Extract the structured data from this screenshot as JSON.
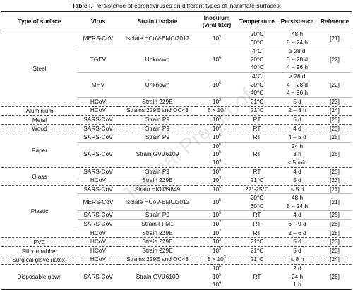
{
  "header": {
    "label": "Table I.",
    "title": "Persistence of coronaviruses on different types of inanimate surfaces."
  },
  "table": {
    "headers": [
      [
        "Type of surface"
      ],
      [
        "Virus"
      ],
      [
        "Strain / isolate"
      ],
      [
        "Inoculum",
        "(viral titer)"
      ],
      [
        "Temperature"
      ],
      [
        "Persistence"
      ],
      [
        "Reference"
      ]
    ],
    "groups": [
      {
        "surface": "Steel",
        "rows": [
          {
            "virus": "MERS-CoV",
            "strain": "Isolate HCoV-EMC/2012",
            "inoculum": [
              {
                "base": "10",
                "exp": "5"
              }
            ],
            "temperature": [
              "20°C",
              "30°C"
            ],
            "persistence": [
              "48 h",
              "8 – 24 h"
            ],
            "reference": "[21]"
          },
          {
            "virus": "TGEV",
            "strain": "Unknown",
            "inoculum": [
              {
                "base": "10",
                "exp": "6"
              }
            ],
            "temperature": [
              "4°C",
              "20°C",
              "40°C"
            ],
            "persistence": [
              "≥ 28 d",
              "3 – 28 d",
              "4 – 96 h"
            ],
            "reference": "[22]"
          },
          {
            "virus": "MHV",
            "strain": "Unknown",
            "inoculum": [
              {
                "base": "10",
                "exp": "6"
              }
            ],
            "temperature": [
              "4°C",
              "20°C",
              "40°C"
            ],
            "persistence": [
              "≥ 28 d",
              "4 – 28 d",
              "4 – 96 h"
            ],
            "reference": "[22]"
          },
          {
            "virus": "HCoV",
            "strain": "Strain 229E",
            "inoculum": [
              {
                "base": "10",
                "exp": "3"
              }
            ],
            "temperature": [
              "21°C"
            ],
            "persistence": [
              "5 d"
            ],
            "reference": "[23]"
          }
        ]
      },
      {
        "surface": "Aluminium",
        "rows": [
          {
            "virus": "HCoV",
            "strain": "Strains 229E and OC43",
            "inoculum": [
              {
                "base": "5 x 10",
                "exp": "3"
              }
            ],
            "temperature": [
              "21°C"
            ],
            "persistence": [
              "2 – 8 h"
            ],
            "reference": "[24]"
          }
        ]
      },
      {
        "surface": "Metal",
        "rows": [
          {
            "virus": "SARS-CoV",
            "strain": "Strain P9",
            "inoculum": [
              {
                "base": "10",
                "exp": "5"
              }
            ],
            "temperature": [
              "RT"
            ],
            "persistence": [
              "5 d"
            ],
            "reference": "[25]"
          }
        ]
      },
      {
        "surface": "Wood",
        "rows": [
          {
            "virus": "SARS-CoV",
            "strain": "Strain P9",
            "inoculum": [
              {
                "base": "10",
                "exp": "5"
              }
            ],
            "temperature": [
              "RT"
            ],
            "persistence": [
              "4 d"
            ],
            "reference": "[25]"
          }
        ]
      },
      {
        "surface": "Paper",
        "rows": [
          {
            "virus": "SARS-CoV",
            "strain": "Strain P9",
            "inoculum": [
              {
                "base": "10",
                "exp": "5"
              }
            ],
            "temperature": [
              "RT"
            ],
            "persistence": [
              "4 – 5 d"
            ],
            "reference": "[25]"
          },
          {
            "virus": "SARS-CoV",
            "strain": "Strain GVU6109",
            "inoculum": [
              {
                "base": "10",
                "exp": "6"
              },
              {
                "base": "10",
                "exp": "5"
              },
              {
                "base": "10",
                "exp": "4"
              }
            ],
            "temperature": [
              "RT"
            ],
            "persistence": [
              "24 h",
              "3 h",
              "< 5 min"
            ],
            "reference": "[26]"
          }
        ]
      },
      {
        "surface": "Glass",
        "rows": [
          {
            "virus": "SARS-CoV",
            "strain": "Strain P9",
            "inoculum": [
              {
                "base": "10",
                "exp": "5"
              }
            ],
            "temperature": [
              "RT"
            ],
            "persistence": [
              "4 d"
            ],
            "reference": "[25]"
          },
          {
            "virus": "HCoV",
            "strain": "Strain 229E",
            "inoculum": [
              {
                "base": "10",
                "exp": "3"
              }
            ],
            "temperature": [
              "21°C"
            ],
            "persistence": [
              "5 d"
            ],
            "reference": "[23]"
          }
        ]
      },
      {
        "surface": "Plastic",
        "rows": [
          {
            "virus": "SARS-CoV",
            "strain": "Strain HKU39849",
            "inoculum": [
              {
                "base": "10",
                "exp": "5"
              }
            ],
            "temperature": [
              "22°-25°C"
            ],
            "persistence": [
              "≤ 5 d"
            ],
            "reference": "[27]"
          },
          {
            "virus": "MERS-CoV",
            "strain": "Isolate HCoV-EMC/2012",
            "inoculum": [
              {
                "base": "10",
                "exp": "5"
              }
            ],
            "temperature": [
              "20°C",
              "30°C"
            ],
            "persistence": [
              "48 h",
              "8 – 24 h"
            ],
            "reference": "[21]"
          },
          {
            "virus": "SARS-CoV",
            "strain": "Strain P9",
            "inoculum": [
              {
                "base": "10",
                "exp": "5"
              }
            ],
            "temperature": [
              "RT"
            ],
            "persistence": [
              "4 d"
            ],
            "reference": "[25]"
          },
          {
            "virus": "SARS-CoV",
            "strain": "Strain FFM1",
            "inoculum": [
              {
                "base": "10",
                "exp": "7"
              }
            ],
            "temperature": [
              "RT"
            ],
            "persistence": [
              "6 – 9 d"
            ],
            "reference": "[28]"
          },
          {
            "virus": "HCoV",
            "strain": "Strain 229E",
            "inoculum": [
              {
                "base": "10",
                "exp": "7"
              }
            ],
            "temperature": [
              "RT"
            ],
            "persistence": [
              "2 – 6 d"
            ],
            "reference": "[28]"
          }
        ]
      },
      {
        "surface": "PVC",
        "rows": [
          {
            "virus": "HCoV",
            "strain": "Strain 229E",
            "inoculum": [
              {
                "base": "10",
                "exp": "3"
              }
            ],
            "temperature": [
              "21°C"
            ],
            "persistence": [
              "5 d"
            ],
            "reference": "[23]"
          }
        ]
      },
      {
        "surface": "Silicon rubber",
        "rows": [
          {
            "virus": "HCoV",
            "strain": "Strain 229E",
            "inoculum": [
              {
                "base": "10",
                "exp": "3"
              }
            ],
            "temperature": [
              "21°C"
            ],
            "persistence": [
              "5 d"
            ],
            "reference": "[23]"
          }
        ]
      },
      {
        "surface": "Surgical glove (latex)",
        "rows": [
          {
            "virus": "HCoV",
            "strain": "Strains 229E and OC43",
            "inoculum": [
              {
                "base": "5 x 10",
                "exp": "3"
              }
            ],
            "temperature": [
              "21°C"
            ],
            "persistence": [
              "≤ 8 h"
            ],
            "reference": "[24]"
          }
        ]
      },
      {
        "surface": "Disposable gown",
        "rows": [
          {
            "virus": "SARS-CoV",
            "strain": "Strain GVU6109",
            "inoculum": [
              {
                "base": "10",
                "exp": "6"
              },
              {
                "base": "10",
                "exp": "5"
              },
              {
                "base": "10",
                "exp": "4"
              }
            ],
            "temperature": [
              "RT"
            ],
            "persistence": [
              "2 d",
              "24 h",
              "1 h"
            ],
            "reference": "[26]"
          }
        ]
      }
    ]
  },
  "watermark": "Journal Pre-proof"
}
